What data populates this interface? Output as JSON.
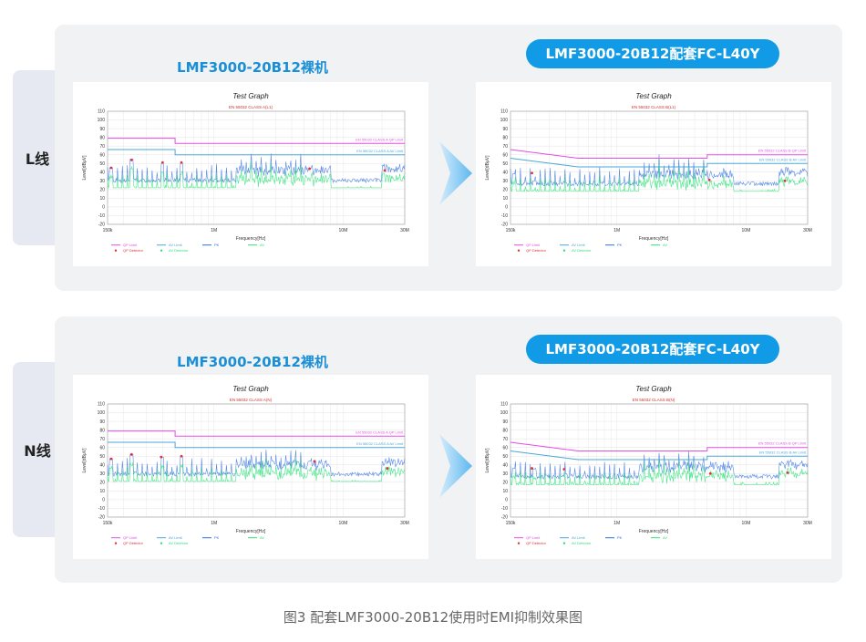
{
  "row_labels": [
    "L线",
    "N线"
  ],
  "titles": {
    "bare": "LMF3000-20B12裸机",
    "with_filter": "LMF3000-20B12配套FC-L40Y"
  },
  "caption": "图3 配套LMF3000-20B12使用时EMI抑制效果图",
  "colors": {
    "qp_limit": "#e64ce6",
    "av_limit": "#4aa8d8",
    "pk": "#2f6ee0",
    "av": "#2ee07a",
    "qp_det": "#e0303a",
    "av_det": "#2ee07a"
  },
  "chart_data": [
    {
      "type": "line",
      "title": "Test Graph",
      "subtitle": "EN 55032 CLASS A(L1)",
      "xlabel": "Frequency[Hz]",
      "ylabel": "Level[dBμV]",
      "xscale": "log",
      "xlim": [
        150000,
        30000000
      ],
      "ylim": [
        -20,
        110
      ],
      "xticks": [
        "150k",
        "1M",
        "10M",
        "30M"
      ],
      "yticks": [
        "110",
        "100",
        "90",
        "80",
        "70",
        "60",
        "50",
        "40",
        "30",
        "20",
        "10",
        "0",
        "-10",
        "-20"
      ],
      "limits": [
        {
          "name": "EN 55032 CLASS A QP Limit",
          "x": [
            150000,
            500000,
            500000,
            30000000
          ],
          "y": [
            79,
            79,
            73,
            73
          ]
        },
        {
          "name": "EN 55032 CLASS A AV Limit",
          "x": [
            150000,
            500000,
            500000,
            30000000
          ],
          "y": [
            66,
            66,
            60,
            60
          ]
        }
      ],
      "noise": {
        "pk_base": 28,
        "av_base": 22,
        "peak_heights": [
          45,
          55,
          50,
          50,
          43,
          38
        ],
        "hump_start": 20000000
      },
      "qp_detector": [
        {
          "x": 160000,
          "y": 45
        },
        {
          "x": 230000,
          "y": 54
        },
        {
          "x": 400000,
          "y": 51
        },
        {
          "x": 560000,
          "y": 51
        },
        {
          "x": 5500000,
          "y": 44
        },
        {
          "x": 21000000,
          "y": 42
        }
      ],
      "legend": [
        "QP Limit",
        "AV Limit",
        "PK",
        "AV",
        "QP Detector",
        "AV Detector"
      ]
    },
    {
      "type": "line",
      "title": "Test Graph",
      "subtitle": "EN 55032 CLASS B(L1)",
      "xlabel": "Frequency[Hz]",
      "ylabel": "Level[dBμV]",
      "xscale": "log",
      "xlim": [
        150000,
        30000000
      ],
      "ylim": [
        -20,
        110
      ],
      "xticks": [
        "150k",
        "1M",
        "10M",
        "30M"
      ],
      "yticks": [
        "110",
        "100",
        "90",
        "80",
        "70",
        "60",
        "50",
        "40",
        "30",
        "20",
        "10",
        "0",
        "-10",
        "-20"
      ],
      "limits": [
        {
          "name": "EN 55032 CLASS B QP Limit",
          "x": [
            150000,
            500000,
            500000,
            5000000,
            5000000,
            30000000
          ],
          "y": [
            66,
            56,
            56,
            56,
            60,
            60
          ]
        },
        {
          "name": "EN 55032 CLASS B AV Limit",
          "x": [
            150000,
            500000,
            500000,
            5000000,
            5000000,
            30000000
          ],
          "y": [
            56,
            46,
            46,
            46,
            50,
            50
          ]
        }
      ],
      "noise": {
        "pk_base": 24,
        "av_base": 18,
        "peak_heights": [
          38,
          30,
          28,
          27,
          32,
          30
        ],
        "hump_start": 18000000
      },
      "qp_detector": [
        {
          "x": 220000,
          "y": 39
        },
        {
          "x": 5200000,
          "y": 31
        },
        {
          "x": 20000000,
          "y": 30
        }
      ],
      "legend": [
        "QP Limit",
        "AV Limit",
        "PK",
        "AV",
        "QP Detector",
        "AV Detector"
      ]
    },
    {
      "type": "line",
      "title": "Test Graph",
      "subtitle": "EN 55032 CLASS A(N)",
      "xlabel": "Frequency[Hz]",
      "ylabel": "Level[dBμV]",
      "xscale": "log",
      "xlim": [
        150000,
        30000000
      ],
      "ylim": [
        -20,
        110
      ],
      "xticks": [
        "150k",
        "1M",
        "10M",
        "30M"
      ],
      "yticks": [
        "110",
        "100",
        "90",
        "80",
        "70",
        "60",
        "50",
        "40",
        "30",
        "20",
        "10",
        "0",
        "-10",
        "-20"
      ],
      "limits": [
        {
          "name": "EN 55032 CLASS A QP Limit",
          "x": [
            150000,
            500000,
            500000,
            30000000
          ],
          "y": [
            79,
            79,
            73,
            73
          ]
        },
        {
          "name": "EN 55032 CLASS A AV Limit",
          "x": [
            150000,
            500000,
            500000,
            30000000
          ],
          "y": [
            66,
            66,
            60,
            60
          ]
        }
      ],
      "noise": {
        "pk_base": 27,
        "av_base": 21,
        "peak_heights": [
          47,
          52,
          49,
          50,
          44,
          36
        ],
        "hump_start": 20000000
      },
      "qp_detector": [
        {
          "x": 160000,
          "y": 47
        },
        {
          "x": 230000,
          "y": 52
        },
        {
          "x": 390000,
          "y": 49
        },
        {
          "x": 560000,
          "y": 50
        },
        {
          "x": 6000000,
          "y": 44
        },
        {
          "x": 22000000,
          "y": 36
        }
      ],
      "legend": [
        "QP Limit",
        "AV Limit",
        "PK",
        "AV",
        "QP Detector",
        "AV Detector"
      ]
    },
    {
      "type": "line",
      "title": "Test Graph",
      "subtitle": "EN 55032 CLASS B(N)",
      "xlabel": "Frequency[Hz]",
      "ylabel": "Level[dBμV]",
      "xscale": "log",
      "xlim": [
        150000,
        30000000
      ],
      "ylim": [
        -20,
        110
      ],
      "xticks": [
        "150k",
        "1M",
        "10M",
        "30M"
      ],
      "yticks": [
        "110",
        "100",
        "90",
        "80",
        "70",
        "60",
        "50",
        "40",
        "30",
        "20",
        "10",
        "0",
        "-10",
        "-20"
      ],
      "limits": [
        {
          "name": "EN 55032 CLASS B QP Limit",
          "x": [
            150000,
            500000,
            500000,
            5000000,
            5000000,
            30000000
          ],
          "y": [
            66,
            56,
            56,
            56,
            60,
            60
          ]
        },
        {
          "name": "EN 55032 CLASS B AV Limit",
          "x": [
            150000,
            500000,
            500000,
            5000000,
            5000000,
            30000000
          ],
          "y": [
            56,
            46,
            46,
            46,
            50,
            50
          ]
        }
      ],
      "noise": {
        "pk_base": 24,
        "av_base": 17,
        "peak_heights": [
          36,
          35,
          30,
          28,
          30,
          31
        ],
        "hump_start": 18000000
      },
      "qp_detector": [
        {
          "x": 220000,
          "y": 36
        },
        {
          "x": 390000,
          "y": 35
        },
        {
          "x": 5300000,
          "y": 30
        },
        {
          "x": 21000000,
          "y": 31
        }
      ],
      "legend": [
        "QP Limit",
        "AV Limit",
        "PK",
        "AV",
        "QP Detector",
        "AV Detector"
      ]
    }
  ]
}
